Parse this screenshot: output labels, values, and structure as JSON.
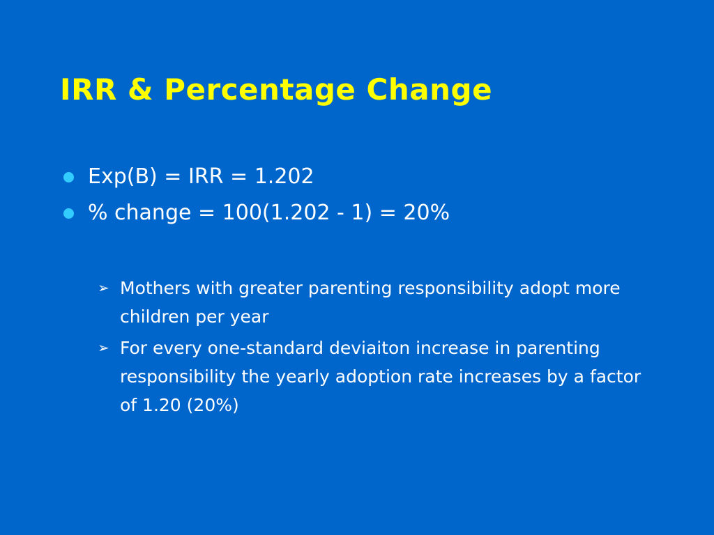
{
  "slide": {
    "title": "IRR & Percentage Change",
    "bullets": [
      {
        "text": "Exp(B) = IRR = 1.202"
      },
      {
        "text": "% change = 100(1.202 - 1) = 20%"
      }
    ],
    "sub_bullets": [
      {
        "text": "Mothers with greater parenting responsibility adopt more children per year"
      },
      {
        "text": "For every one-standard deviaiton increase in parenting responsibility the yearly adoption rate increases by a factor of 1.20 (20%)"
      }
    ]
  },
  "colors": {
    "background": "#0066cc",
    "title": "#ffff00",
    "body_text": "#ffffff",
    "bullet_dot": "#33ccff"
  },
  "icons": {
    "bullet": "filled-circle",
    "sub_bullet": "arrow-right-outline"
  }
}
